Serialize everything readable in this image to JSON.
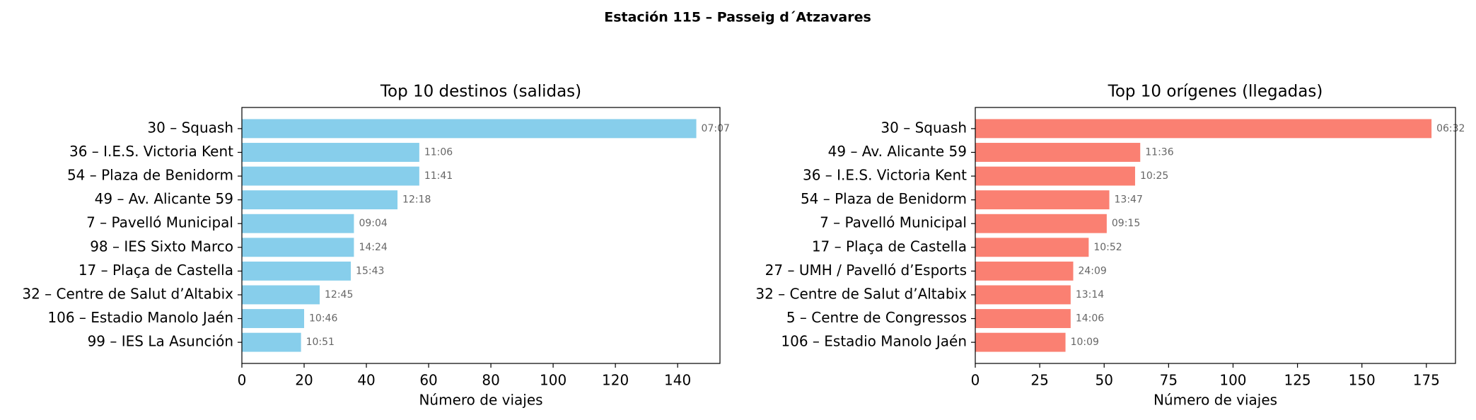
{
  "title": "Estación 115 – Passeig d´Atzavares",
  "chart_data": [
    {
      "type": "barh",
      "title": "Top 10 destinos (salidas)",
      "xlabel": "Número de viajes",
      "color": "#87ceeb",
      "categories": [
        "30 – Squash",
        "36 – I.E.S. Victoria Kent",
        "54 – Plaza de Benidorm",
        "49 – Av. Alicante 59",
        "7 – Pavelló Municipal",
        "98 – IES Sixto Marco",
        "17 – Plaça de Castella",
        "32 – Centre de Salut d’Altabix",
        "106 – Estadio Manolo Jaén",
        "99 – IES La Asunción"
      ],
      "values": [
        146,
        57,
        57,
        50,
        36,
        36,
        35,
        25,
        20,
        19
      ],
      "bar_annotations": [
        "07:07",
        "11:06",
        "11:41",
        "12:18",
        "09:04",
        "14:24",
        "15:43",
        "12:45",
        "10:46",
        "10:51"
      ],
      "xlim": [
        0,
        153.6
      ],
      "xticks": [
        0,
        20,
        40,
        60,
        80,
        100,
        120,
        140
      ]
    },
    {
      "type": "barh",
      "title": "Top 10 orígenes (llegadas)",
      "xlabel": "Número de viajes",
      "color": "#fa8072",
      "categories": [
        "30 – Squash",
        "49 – Av. Alicante 59",
        "36 – I.E.S. Victoria Kent",
        "54 – Plaza de Benidorm",
        "7 – Pavelló Municipal",
        "17 – Plaça de Castella",
        "27 – UMH / Pavelló d’Esports",
        "32 – Centre de Salut d’Altabix",
        "5 – Centre de Congressos",
        "106 – Estadio Manolo Jaén"
      ],
      "values": [
        177,
        64,
        62,
        52,
        51,
        44,
        38,
        37,
        37,
        35
      ],
      "bar_annotations": [
        "06:32",
        "11:36",
        "10:25",
        "13:47",
        "09:15",
        "10:52",
        "24:09",
        "13:14",
        "14:06",
        "10:09"
      ],
      "xlim": [
        0,
        186.3
      ],
      "xticks": [
        0,
        25,
        50,
        75,
        100,
        125,
        150,
        175
      ]
    }
  ]
}
